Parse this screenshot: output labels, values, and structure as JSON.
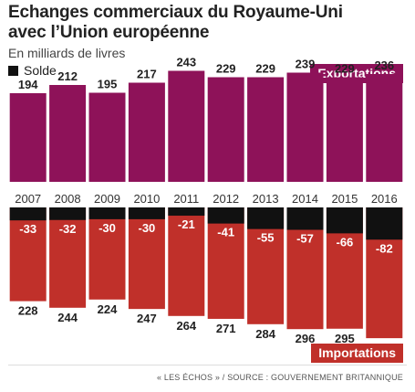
{
  "title_line1": "Echanges commerciaux du Royaume-Uni",
  "title_line2": "avec l’Union européenne",
  "subtitle": "En milliards de livres",
  "legend_solde": "Solde",
  "label_exports": "Exportations",
  "label_imports": "Importations",
  "source": "« LES ÉCHOS » / SOURCE : GOUVERNEMENT BRITANNIQUE",
  "colors": {
    "exports": "#8e1259",
    "imports": "#c0302a",
    "solde": "#111111"
  },
  "chart_data": {
    "type": "bar",
    "categories": [
      "2007",
      "2008",
      "2009",
      "2010",
      "2011",
      "2012",
      "2013",
      "2014",
      "2015",
      "2016"
    ],
    "series": [
      {
        "name": "Exportations",
        "values": [
          194,
          212,
          195,
          217,
          243,
          229,
          229,
          239,
          229,
          236
        ]
      },
      {
        "name": "Importations",
        "values": [
          228,
          244,
          224,
          247,
          264,
          271,
          284,
          296,
          295,
          318
        ]
      },
      {
        "name": "Solde",
        "values": [
          -33,
          -32,
          -30,
          -30,
          -21,
          -41,
          -55,
          -57,
          -66,
          -82
        ]
      }
    ]
  }
}
